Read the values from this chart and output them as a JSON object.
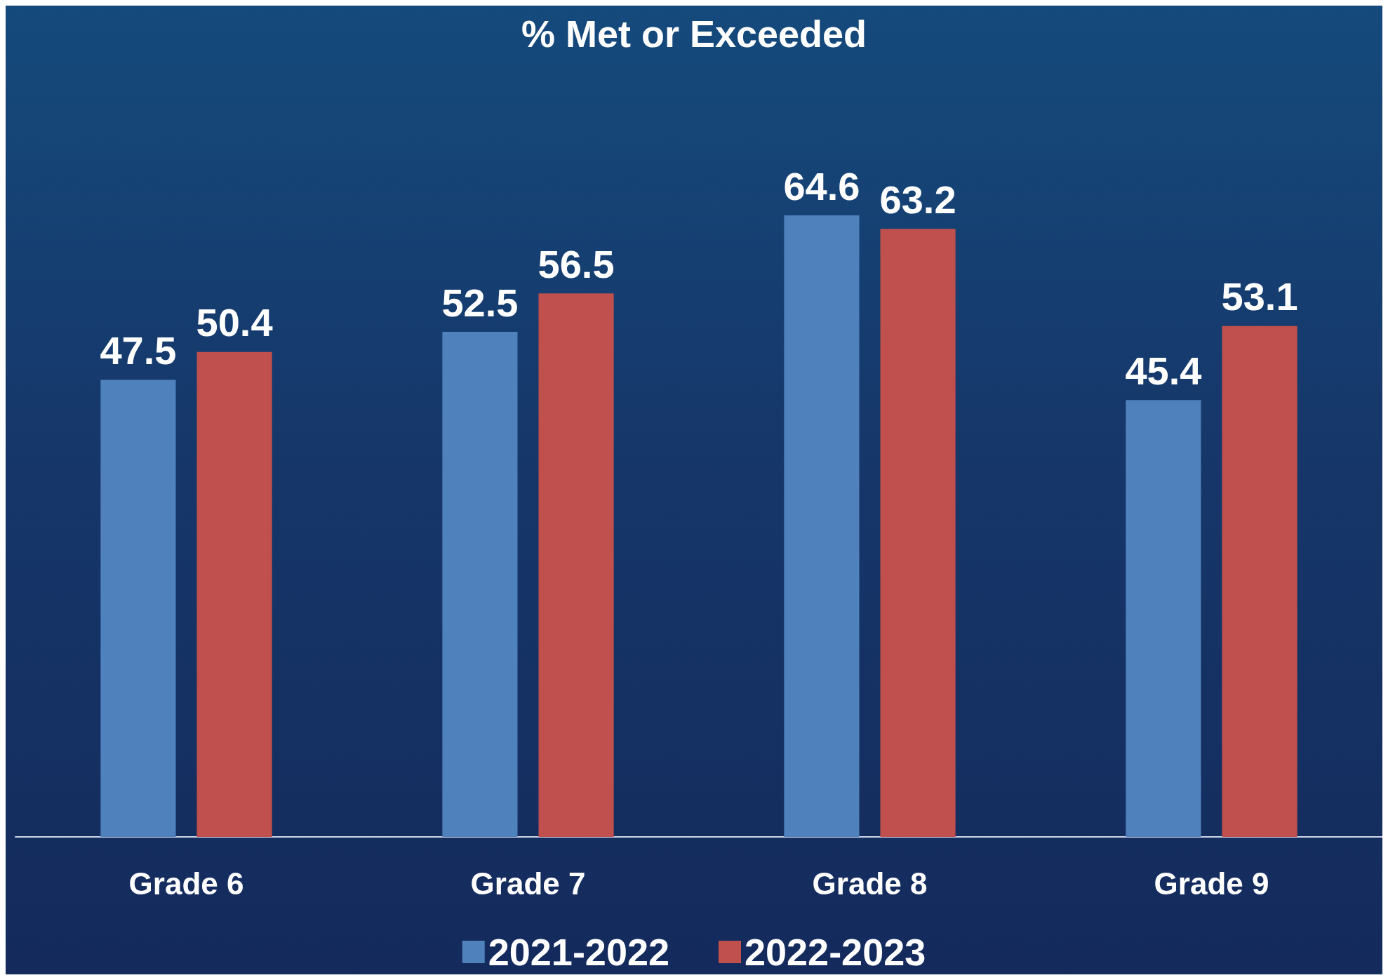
{
  "chart_data": {
    "type": "bar",
    "title": "% Met or Exceeded",
    "categories": [
      "Grade 6",
      "Grade 7",
      "Grade 8",
      "Grade 9"
    ],
    "series": [
      {
        "name": "2021-2022",
        "color": "#4f81bd",
        "values": [
          47.5,
          52.5,
          64.6,
          45.4
        ]
      },
      {
        "name": "2022-2023",
        "color": "#c0504d",
        "values": [
          50.4,
          56.5,
          63.2,
          53.1
        ]
      }
    ],
    "data_labels": true,
    "legend": "bottom"
  }
}
